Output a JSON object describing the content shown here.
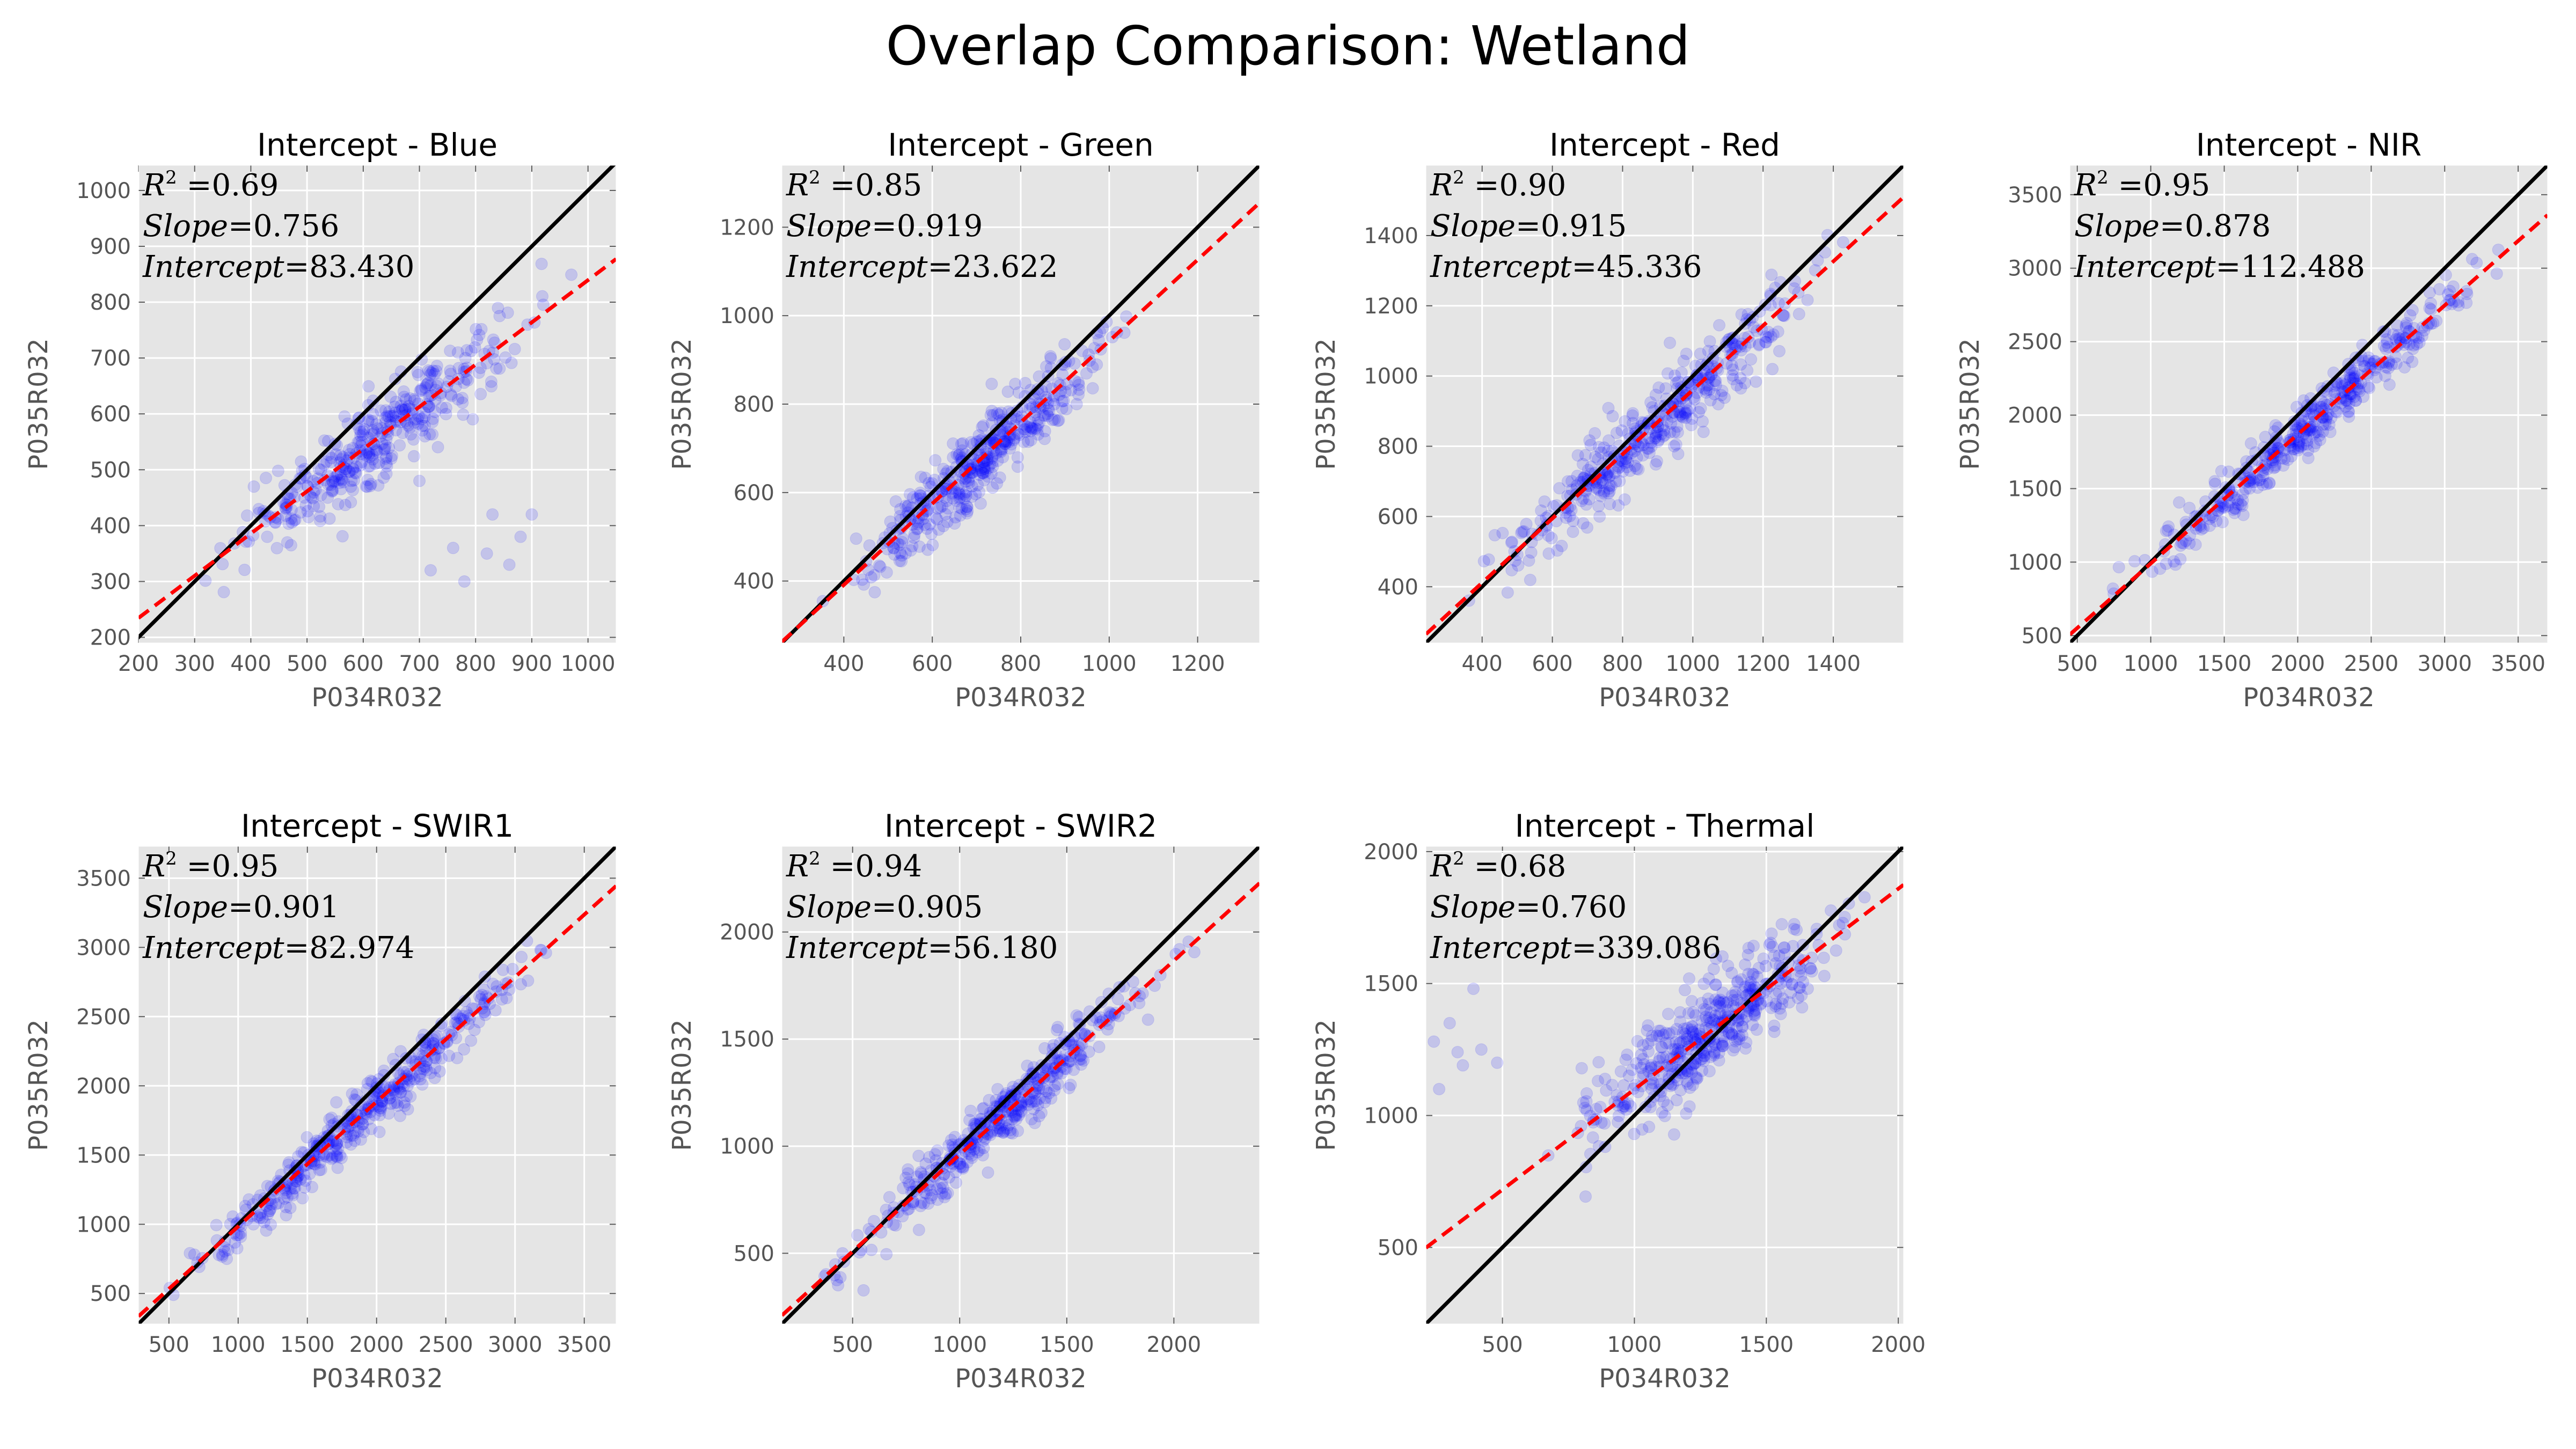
{
  "figure": {
    "title": "Overlap Comparison: Wetland"
  },
  "style": {
    "background": "#e5e5e5",
    "grid_color": "#ffffff",
    "point_color": "#0000ff",
    "point_alpha": 0.15,
    "fit_line_color": "#ff0000",
    "identity_line_color": "#000000",
    "tick_label_color": "#555555"
  },
  "chart_data": [
    {
      "type": "scatter",
      "title": "Intercept - Blue",
      "xlabel": "P034R032",
      "ylabel": "P035R032",
      "xlim": [
        200,
        1050
      ],
      "ylim": [
        190,
        1045
      ],
      "xticks": [
        200,
        300,
        400,
        500,
        600,
        700,
        800,
        900,
        1000
      ],
      "yticks": [
        200,
        300,
        400,
        500,
        600,
        700,
        800,
        900,
        1000
      ],
      "r2": "0.69",
      "slope": "0.756",
      "intercept": "83.430",
      "fit": {
        "slope": 0.756,
        "intercept": 83.43
      },
      "identity_line": true,
      "points": {
        "n": 380,
        "x_range": [
          280,
          980
        ],
        "noise": 38,
        "outliers": [
          [
            720,
            320
          ],
          [
            760,
            360
          ],
          [
            780,
            300
          ],
          [
            820,
            350
          ],
          [
            860,
            330
          ],
          [
            880,
            380
          ],
          [
            900,
            420
          ],
          [
            650,
            520
          ],
          [
            700,
            480
          ],
          [
            830,
            420
          ]
        ]
      },
      "grid": true
    },
    {
      "type": "scatter",
      "title": "Intercept - Green",
      "xlabel": "P034R032",
      "ylabel": "P035R032",
      "xlim": [
        260,
        1340
      ],
      "ylim": [
        260,
        1340
      ],
      "xticks": [
        400,
        600,
        800,
        1000,
        1200
      ],
      "yticks": [
        400,
        600,
        800,
        1000,
        1200
      ],
      "r2": "0.85",
      "slope": "0.919",
      "intercept": "23.622",
      "fit": {
        "slope": 0.919,
        "intercept": 23.622
      },
      "identity_line": true,
      "points": {
        "n": 420,
        "x_range": [
          330,
          1100
        ],
        "noise": 45,
        "outliers": []
      },
      "grid": true
    },
    {
      "type": "scatter",
      "title": "Intercept - Red",
      "xlabel": "P034R032",
      "ylabel": "P035R032",
      "xlim": [
        240,
        1600
      ],
      "ylim": [
        240,
        1600
      ],
      "xticks": [
        400,
        600,
        800,
        1000,
        1200,
        1400
      ],
      "yticks": [
        400,
        600,
        800,
        1000,
        1200,
        1400
      ],
      "r2": "0.90",
      "slope": "0.915",
      "intercept": "45.336",
      "fit": {
        "slope": 0.915,
        "intercept": 45.336
      },
      "identity_line": true,
      "points": {
        "n": 420,
        "x_range": [
          300,
          1500
        ],
        "noise": 55,
        "outliers": []
      },
      "grid": true
    },
    {
      "type": "scatter",
      "title": "Intercept - NIR",
      "xlabel": "P034R032",
      "ylabel": "P035R032",
      "xlim": [
        450,
        3700
      ],
      "ylim": [
        450,
        3700
      ],
      "xticks": [
        500,
        1000,
        1500,
        2000,
        2500,
        3000,
        3500
      ],
      "yticks": [
        500,
        1000,
        1500,
        2000,
        2500,
        3000,
        3500
      ],
      "r2": "0.95",
      "slope": "0.878",
      "intercept": "112.488",
      "fit": {
        "slope": 0.878,
        "intercept": 112.488
      },
      "identity_line": true,
      "points": {
        "n": 420,
        "x_range": [
          500,
          3600
        ],
        "noise": 95,
        "outliers": []
      },
      "grid": true
    },
    {
      "type": "scatter",
      "title": "Intercept - SWIR1",
      "xlabel": "P034R032",
      "ylabel": "P035R032",
      "xlim": [
        280,
        3730
      ],
      "ylim": [
        280,
        3730
      ],
      "xticks": [
        500,
        1000,
        1500,
        2000,
        2500,
        3000,
        3500
      ],
      "yticks": [
        500,
        1000,
        1500,
        2000,
        2500,
        3000,
        3500
      ],
      "r2": "0.95",
      "slope": "0.901",
      "intercept": "82.974",
      "fit": {
        "slope": 0.901,
        "intercept": 82.974
      },
      "identity_line": true,
      "points": {
        "n": 420,
        "x_range": [
          300,
          3500
        ],
        "noise": 95,
        "outliers": []
      },
      "grid": true
    },
    {
      "type": "scatter",
      "title": "Intercept - SWIR2",
      "xlabel": "P034R032",
      "ylabel": "P035R032",
      "xlim": [
        170,
        2400
      ],
      "ylim": [
        170,
        2400
      ],
      "xticks": [
        500,
        1000,
        1500,
        2000
      ],
      "yticks": [
        500,
        1000,
        1500,
        2000
      ],
      "r2": "0.94",
      "slope": "0.905",
      "intercept": "56.180",
      "fit": {
        "slope": 0.905,
        "intercept": 56.18
      },
      "identity_line": true,
      "points": {
        "n": 420,
        "x_range": [
          200,
          2200
        ],
        "noise": 70,
        "outliers": []
      },
      "grid": true
    },
    {
      "type": "scatter",
      "title": "Intercept - Thermal",
      "xlabel": "P034R032",
      "ylabel": "P035R032",
      "xlim": [
        210,
        2020
      ],
      "ylim": [
        210,
        2020
      ],
      "xticks": [
        500,
        1000,
        1500,
        2000
      ],
      "yticks": [
        500,
        1000,
        1500,
        2000
      ],
      "r2": "0.68",
      "slope": "0.760",
      "intercept": "339.086",
      "fit": {
        "slope": 0.76,
        "intercept": 339.086
      },
      "identity_line": true,
      "points": {
        "n": 460,
        "x_range": [
          600,
          1950
        ],
        "noise": 90,
        "outliers": [
          [
            240,
            1280
          ],
          [
            300,
            1350
          ],
          [
            350,
            1190
          ],
          [
            420,
            1250
          ],
          [
            260,
            1100
          ],
          [
            390,
            1480
          ],
          [
            330,
            1240
          ],
          [
            480,
            1200
          ]
        ]
      },
      "grid": true
    }
  ]
}
